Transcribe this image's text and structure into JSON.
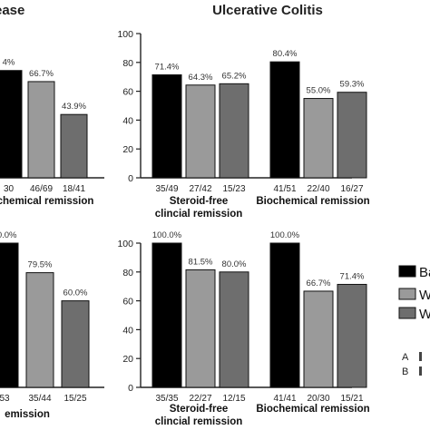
{
  "titles": {
    "left": "ease",
    "right": "Ulcerative Colitis"
  },
  "legend": {
    "items": [
      {
        "text": "Ba",
        "color": "#000000"
      },
      {
        "text": "W",
        "color": "#9a9a9a"
      },
      {
        "text": "W",
        "color": "#6e6e6e"
      }
    ],
    "footnotes": [
      "A",
      "B"
    ]
  },
  "chart_data": [
    {
      "id": "top-left",
      "type": "bar",
      "group_labels": [
        "chemical remission"
      ],
      "y_ticks": [],
      "bars": [
        {
          "pct": "4%",
          "value": 74.4,
          "fraction": "30",
          "color": "#000000"
        },
        {
          "pct": "66.7%",
          "value": 66.7,
          "fraction": "46/69",
          "color": "#9a9a9a"
        },
        {
          "pct": "43.9%",
          "value": 43.9,
          "fraction": "18/41",
          "color": "#6e6e6e"
        }
      ]
    },
    {
      "id": "top-right",
      "type": "bar",
      "ylim": [
        0,
        100
      ],
      "y_ticks": [
        "0",
        "20",
        "40",
        "60",
        "80",
        "100"
      ],
      "group_labels": [
        "Steroid-free\nclincial remission",
        "Biochemical remission"
      ],
      "bars": [
        {
          "pct": "71.4%",
          "value": 71.4,
          "fraction": "35/49",
          "color": "#000000"
        },
        {
          "pct": "64.3%",
          "value": 64.3,
          "fraction": "27/42",
          "color": "#9a9a9a"
        },
        {
          "pct": "65.2%",
          "value": 65.2,
          "fraction": "15/23",
          "color": "#6e6e6e"
        },
        {
          "pct": "80.4%",
          "value": 80.4,
          "fraction": "41/51",
          "color": "#000000"
        },
        {
          "pct": "55.0%",
          "value": 55.0,
          "fraction": "22/40",
          "color": "#9a9a9a"
        },
        {
          "pct": "59.3%",
          "value": 59.3,
          "fraction": "16/27",
          "color": "#6e6e6e"
        }
      ]
    },
    {
      "id": "bottom-left",
      "type": "bar",
      "group_labels": [
        "emission"
      ],
      "y_ticks": [],
      "bars": [
        {
          "pct": "00.0%",
          "value": 100.0,
          "fraction": "53",
          "color": "#000000"
        },
        {
          "pct": "79.5%",
          "value": 79.5,
          "fraction": "35/44",
          "color": "#9a9a9a"
        },
        {
          "pct": "60.0%",
          "value": 60.0,
          "fraction": "15/25",
          "color": "#6e6e6e"
        }
      ]
    },
    {
      "id": "bottom-right",
      "type": "bar",
      "ylim": [
        0,
        100
      ],
      "y_ticks": [
        "0",
        "20",
        "40",
        "60",
        "80",
        "100"
      ],
      "group_labels": [
        "Steroid-free\nclincial remission",
        "Biochemical remission"
      ],
      "bars": [
        {
          "pct": "100.0%",
          "value": 100.0,
          "fraction": "35/35",
          "color": "#000000"
        },
        {
          "pct": "81.5%",
          "value": 81.5,
          "fraction": "22/27",
          "color": "#9a9a9a"
        },
        {
          "pct": "80.0%",
          "value": 80.0,
          "fraction": "12/15",
          "color": "#6e6e6e"
        },
        {
          "pct": "100.0%",
          "value": 100.0,
          "fraction": "41/41",
          "color": "#000000"
        },
        {
          "pct": "66.7%",
          "value": 66.7,
          "fraction": "20/30",
          "color": "#9a9a9a"
        },
        {
          "pct": "71.4%",
          "value": 71.4,
          "fraction": "15/21",
          "color": "#6e6e6e"
        }
      ]
    }
  ]
}
